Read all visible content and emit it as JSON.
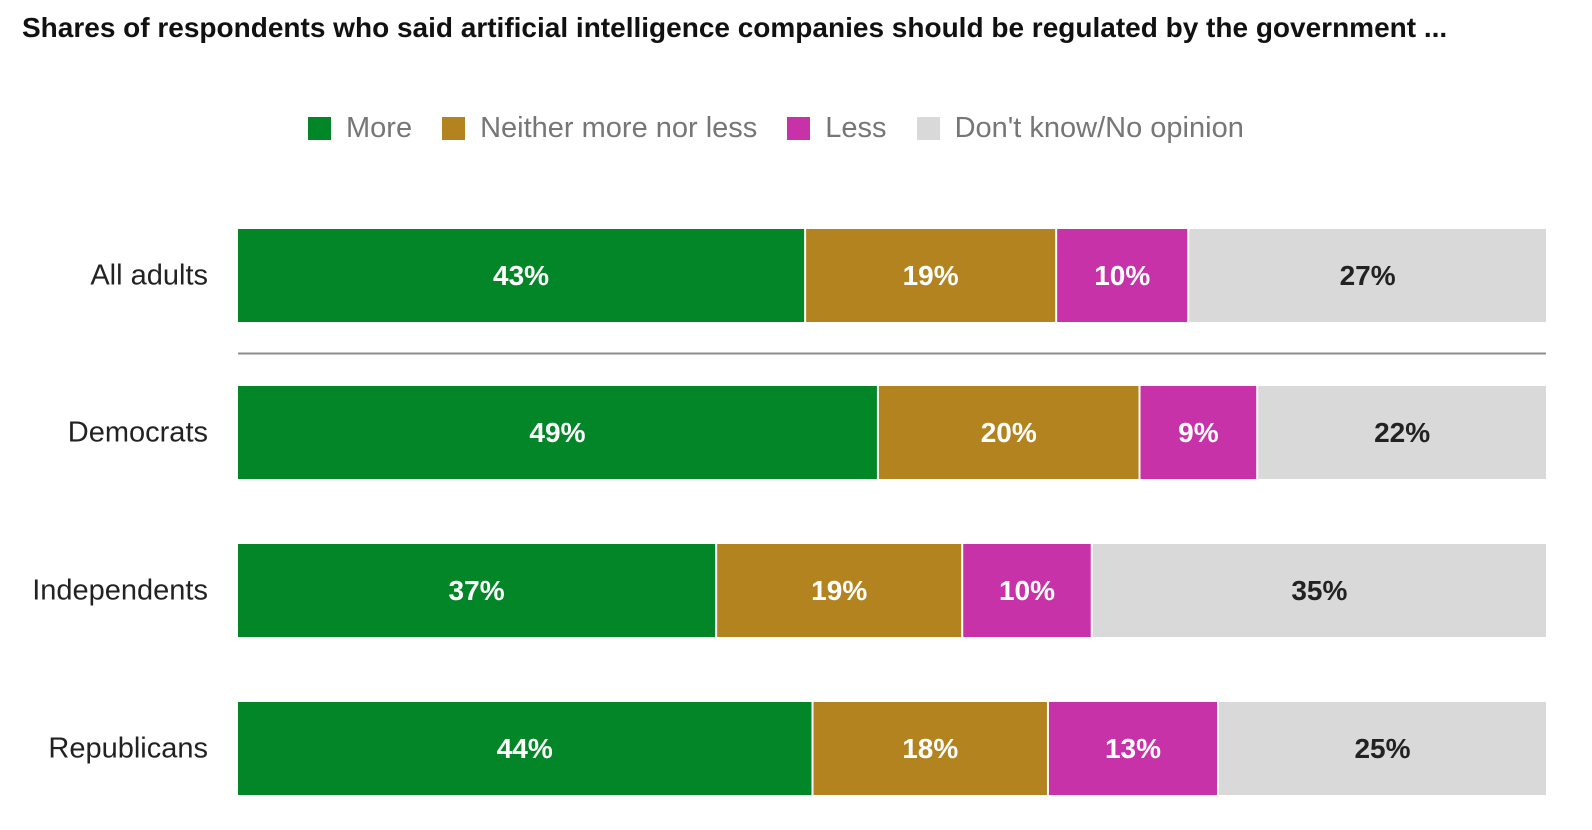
{
  "chart_data": {
    "type": "bar",
    "orientation": "horizontal",
    "stacked": true,
    "title": "Shares of respondents who said artificial intelligence companies should be regulated by the government ...",
    "categories": [
      "All adults",
      "Democrats",
      "Independents",
      "Republicans"
    ],
    "series": [
      {
        "name": "More",
        "color": "#038627",
        "label_color": "#ffffff",
        "values": [
          43,
          49,
          37,
          44
        ],
        "labels": [
          "43%",
          "49%",
          "37%",
          "44%"
        ]
      },
      {
        "name": "Neither more nor less",
        "color": "#b3831f",
        "label_color": "#ffffff",
        "values": [
          19,
          20,
          19,
          18
        ],
        "labels": [
          "19%",
          "20%",
          "19%",
          "18%"
        ]
      },
      {
        "name": "Less",
        "color": "#c732a8",
        "label_color": "#ffffff",
        "values": [
          10,
          9,
          10,
          13
        ],
        "labels": [
          "10%",
          "9%",
          "10%",
          "13%"
        ]
      },
      {
        "name": "Don't know/No opinion",
        "color": "#d9d9d9",
        "label_color": "#222222",
        "values": [
          27,
          22,
          35,
          25
        ],
        "labels": [
          "27%",
          "22%",
          "35%",
          "25%"
        ]
      }
    ],
    "legend_position": "top-center",
    "grid": false,
    "separator_after_category": "All adults",
    "separator_color": "#8c8c8c"
  }
}
